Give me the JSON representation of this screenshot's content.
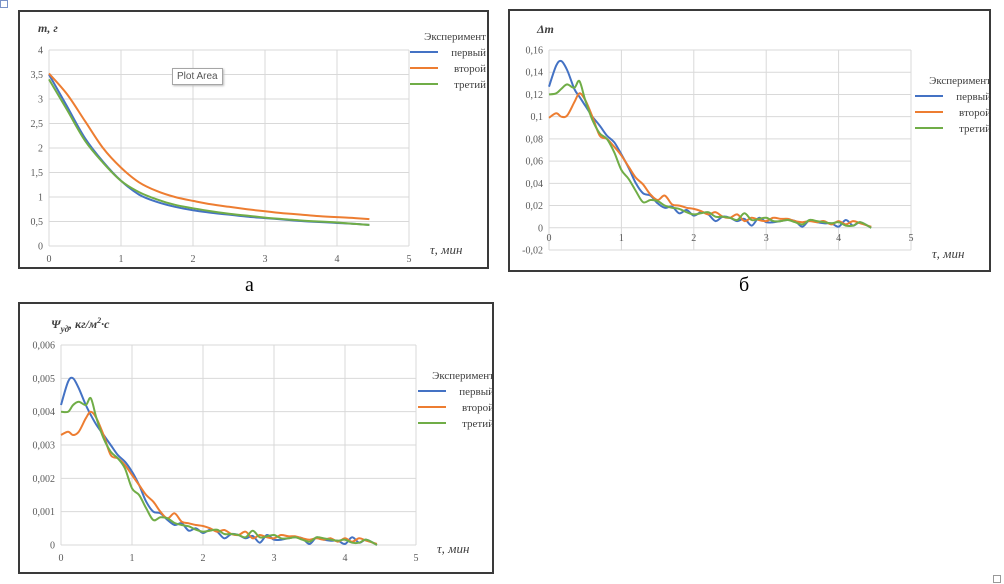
{
  "colors": {
    "first": "#4472c4",
    "second": "#ed7d31",
    "third": "#70ad47",
    "grid": "#d9d9d9",
    "frame": "#3a3a3a"
  },
  "tooltip": "Plot Area",
  "captions": {
    "a": "а",
    "b": "б"
  },
  "chart_data": [
    {
      "type": "line",
      "id": "a",
      "ylabel": "m, г",
      "xlabel": "τ, мин",
      "xlim": [
        0,
        5
      ],
      "ylim": [
        0,
        4
      ],
      "xticks": [
        "0",
        "1",
        "2",
        "3",
        "4",
        "5"
      ],
      "yticks": [
        "0",
        "0,5",
        "1",
        "1,5",
        "2",
        "2,5",
        "3",
        "3,5",
        "4"
      ],
      "grid": true,
      "legend_title": "Эксперимент",
      "legend_position": "right",
      "x": [
        0,
        0.25,
        0.5,
        0.75,
        1.0,
        1.25,
        1.5,
        1.75,
        2.0,
        2.25,
        2.5,
        2.75,
        3.0,
        3.25,
        3.5,
        3.75,
        4.0,
        4.25,
        4.45
      ],
      "series": [
        {
          "name": "первый",
          "values": [
            3.5,
            2.85,
            2.2,
            1.72,
            1.33,
            1.05,
            0.9,
            0.8,
            0.73,
            0.68,
            0.64,
            0.6,
            0.57,
            0.54,
            0.51,
            0.49,
            0.47,
            0.45,
            0.43
          ]
        },
        {
          "name": "второй",
          "values": [
            3.52,
            3.1,
            2.55,
            2.0,
            1.6,
            1.3,
            1.12,
            1.0,
            0.92,
            0.85,
            0.8,
            0.75,
            0.71,
            0.67,
            0.64,
            0.61,
            0.59,
            0.57,
            0.55
          ]
        },
        {
          "name": "третий",
          "values": [
            3.4,
            2.78,
            2.15,
            1.7,
            1.33,
            1.1,
            0.95,
            0.84,
            0.77,
            0.71,
            0.66,
            0.62,
            0.58,
            0.55,
            0.52,
            0.5,
            0.48,
            0.45,
            0.43
          ]
        }
      ]
    },
    {
      "type": "line",
      "id": "b",
      "ylabel": "Δm",
      "xlabel": "τ, мин",
      "xlim": [
        0,
        5
      ],
      "ylim": [
        -0.02,
        0.16
      ],
      "xticks": [
        "0",
        "1",
        "2",
        "3",
        "4",
        "5"
      ],
      "yticks": [
        "-0,02",
        "0",
        "0,02",
        "0,04",
        "0,06",
        "0,08",
        "0,1",
        "0,12",
        "0,14",
        "0,16"
      ],
      "grid": true,
      "legend_title": "Эксперимент",
      "legend_position": "right",
      "x": [
        0,
        0.1,
        0.17,
        0.25,
        0.35,
        0.42,
        0.5,
        0.6,
        0.7,
        0.8,
        0.9,
        1.0,
        1.1,
        1.2,
        1.3,
        1.4,
        1.5,
        1.6,
        1.7,
        1.8,
        1.9,
        2.0,
        2.1,
        2.2,
        2.3,
        2.4,
        2.5,
        2.6,
        2.7,
        2.8,
        2.9,
        3.0,
        3.1,
        3.2,
        3.3,
        3.4,
        3.5,
        3.6,
        3.7,
        3.8,
        3.9,
        4.0,
        4.1,
        4.2,
        4.3,
        4.45
      ],
      "series": [
        {
          "name": "первый",
          "values": [
            0.127,
            0.146,
            0.15,
            0.142,
            0.125,
            0.118,
            0.11,
            0.1,
            0.092,
            0.083,
            0.077,
            0.066,
            0.054,
            0.04,
            0.031,
            0.029,
            0.022,
            0.018,
            0.019,
            0.013,
            0.016,
            0.011,
            0.014,
            0.012,
            0.006,
            0.01,
            0.009,
            0.006,
            0.008,
            0.002,
            0.009,
            0.005,
            0.005,
            0.006,
            0.007,
            0.006,
            0.001,
            0.007,
            0.005,
            0.004,
            0.004,
            0.001,
            0.007,
            0.002,
            0.005,
            0.0
          ]
        },
        {
          "name": "второй",
          "values": [
            0.099,
            0.103,
            0.1,
            0.101,
            0.113,
            0.121,
            0.115,
            0.1,
            0.083,
            0.08,
            0.073,
            0.065,
            0.055,
            0.045,
            0.039,
            0.03,
            0.025,
            0.029,
            0.021,
            0.02,
            0.018,
            0.017,
            0.015,
            0.012,
            0.014,
            0.01,
            0.009,
            0.012,
            0.006,
            0.009,
            0.007,
            0.006,
            0.009,
            0.008,
            0.008,
            0.006,
            0.005,
            0.006,
            0.005,
            0.006,
            0.003,
            0.006,
            0.003,
            0.006,
            0.004,
            0.001
          ]
        },
        {
          "name": "третий",
          "values": [
            0.12,
            0.121,
            0.125,
            0.129,
            0.126,
            0.132,
            0.115,
            0.097,
            0.085,
            0.08,
            0.068,
            0.052,
            0.044,
            0.033,
            0.023,
            0.025,
            0.024,
            0.02,
            0.018,
            0.017,
            0.014,
            0.012,
            0.013,
            0.014,
            0.01,
            0.01,
            0.009,
            0.007,
            0.013,
            0.007,
            0.008,
            0.009,
            0.006,
            0.006,
            0.007,
            0.005,
            0.003,
            0.007,
            0.006,
            0.005,
            0.004,
            0.005,
            0.002,
            0.002,
            0.005,
            0.0
          ]
        }
      ]
    },
    {
      "type": "line",
      "id": "c",
      "ylabel": "Ψуд, кг/м²·с",
      "ylabel_main": "Ψ",
      "ylabel_sub": "уд",
      "ylabel_rest": ", кг/м",
      "ylabel_sup": "2",
      "ylabel_end": "·с",
      "xlabel": "τ, мин",
      "xlim": [
        0,
        5
      ],
      "ylim": [
        0,
        0.006
      ],
      "xticks": [
        "0",
        "1",
        "2",
        "3",
        "4",
        "5"
      ],
      "yticks": [
        "0",
        "0,001",
        "0,002",
        "0,003",
        "0,004",
        "0,005",
        "0,006"
      ],
      "grid": true,
      "legend_title": "Эксперимент",
      "legend_position": "right",
      "x": [
        0,
        0.1,
        0.17,
        0.25,
        0.35,
        0.42,
        0.5,
        0.6,
        0.7,
        0.8,
        0.9,
        1.0,
        1.1,
        1.2,
        1.3,
        1.4,
        1.5,
        1.6,
        1.7,
        1.8,
        1.9,
        2.0,
        2.1,
        2.2,
        2.3,
        2.4,
        2.5,
        2.6,
        2.7,
        2.8,
        2.9,
        3.0,
        3.1,
        3.2,
        3.3,
        3.4,
        3.5,
        3.6,
        3.7,
        3.8,
        3.9,
        4.0,
        4.1,
        4.2,
        4.3,
        4.45
      ],
      "series": [
        {
          "name": "первый",
          "values": [
            0.0042,
            0.0049,
            0.005,
            0.0047,
            0.0042,
            0.0039,
            0.0036,
            0.0033,
            0.003,
            0.0027,
            0.0025,
            0.0022,
            0.0018,
            0.0013,
            0.001,
            0.00095,
            0.00075,
            0.0006,
            0.00065,
            0.00043,
            0.0005,
            0.00036,
            0.00046,
            0.0004,
            0.0002,
            0.00033,
            0.0003,
            0.0002,
            0.00027,
            7e-05,
            0.0003,
            0.00016,
            0.00016,
            0.0002,
            0.00023,
            0.0002,
            3e-05,
            0.00023,
            0.00016,
            0.00013,
            0.00013,
            3e-05,
            0.00023,
            7e-05,
            0.00016,
            0.0
          ]
        },
        {
          "name": "второй",
          "values": [
            0.0033,
            0.0034,
            0.0033,
            0.0034,
            0.0038,
            0.004,
            0.0038,
            0.0033,
            0.0027,
            0.0026,
            0.0024,
            0.0021,
            0.0018,
            0.0015,
            0.0013,
            0.001,
            0.0008,
            0.00095,
            0.0007,
            0.00065,
            0.0006,
            0.00057,
            0.0005,
            0.0004,
            0.00045,
            0.00033,
            0.0003,
            0.0004,
            0.0002,
            0.0003,
            0.00023,
            0.0002,
            0.0003,
            0.00026,
            0.00026,
            0.0002,
            0.00016,
            0.0002,
            0.00016,
            0.0002,
            0.0001,
            0.0002,
            0.0001,
            0.0002,
            0.00013,
            3e-05
          ]
        },
        {
          "name": "третий",
          "values": [
            0.004,
            0.004,
            0.0042,
            0.0043,
            0.0042,
            0.0044,
            0.0038,
            0.0032,
            0.0028,
            0.0026,
            0.0023,
            0.0017,
            0.0015,
            0.0011,
            0.00075,
            0.00083,
            0.0008,
            0.00066,
            0.0006,
            0.00056,
            0.00046,
            0.0004,
            0.00043,
            0.00046,
            0.00033,
            0.00033,
            0.0003,
            0.00023,
            0.00043,
            0.00023,
            0.00026,
            0.0003,
            0.0002,
            0.0002,
            0.00023,
            0.00016,
            0.0001,
            0.00023,
            0.0002,
            0.00016,
            0.00013,
            0.00016,
            7e-05,
            7e-05,
            0.00016,
            0.0
          ]
        }
      ]
    }
  ]
}
